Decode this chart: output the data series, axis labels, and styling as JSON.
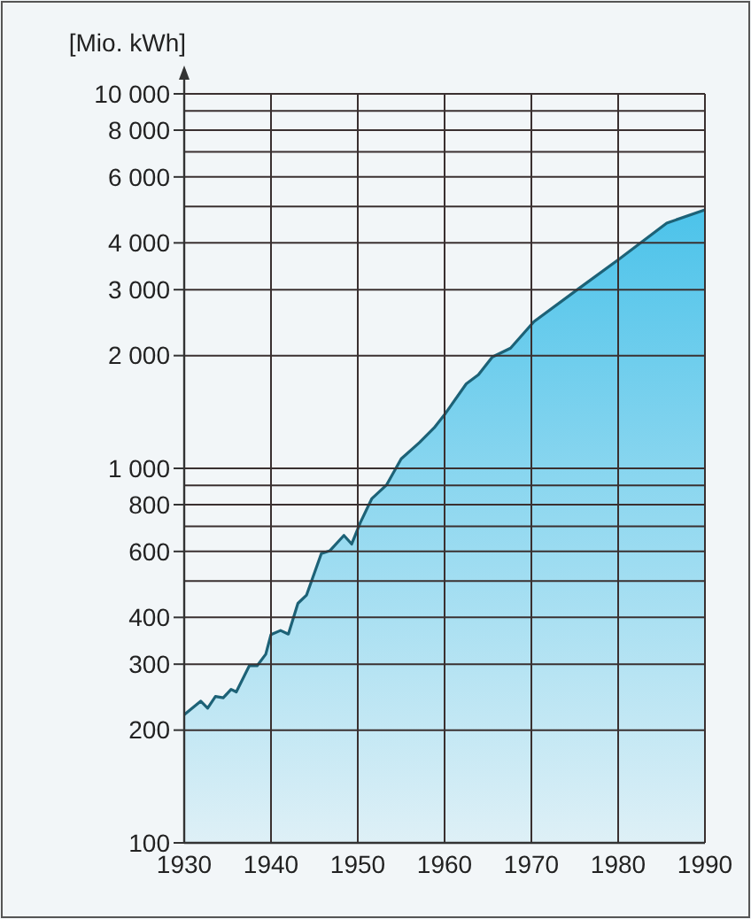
{
  "chart_data": {
    "type": "area",
    "ylabel": "[Mio. kWh]",
    "log": "y",
    "grid": true,
    "xlim": [
      1930,
      1990
    ],
    "xticks": [
      1930,
      1940,
      1950,
      1960,
      1970,
      1980,
      1990
    ],
    "ylim": [
      100,
      10000
    ],
    "yticks": [
      100,
      200,
      300,
      400,
      {
        "value": 500,
        "label": null
      },
      600,
      {
        "value": 700,
        "label": null
      },
      800,
      {
        "value": 900,
        "label": null
      },
      {
        "value": 1000,
        "label": "1 000"
      },
      {
        "value": 2000,
        "label": "2 000"
      },
      {
        "value": 3000,
        "label": "3 000"
      },
      {
        "value": 4000,
        "label": "4 000"
      },
      {
        "value": 5000,
        "label": null
      },
      {
        "value": 6000,
        "label": "6 000"
      },
      {
        "value": 7000,
        "label": null
      },
      {
        "value": 8000,
        "label": "8 000"
      },
      {
        "value": 9000,
        "label": null
      },
      {
        "value": 10000,
        "label": "10 000"
      }
    ],
    "x": [
      1930,
      1931.9,
      1932.7,
      1933.6,
      1934.5,
      1935.4,
      1936,
      1937.5,
      1938.4,
      1939.4,
      1940,
      1941.1,
      1942,
      1943.1,
      1944.1,
      1945.8,
      1946.8,
      1948.4,
      1949.3,
      1950.3,
      1951.6,
      1953.3,
      1955,
      1957.1,
      1958.8,
      1960.1,
      1962.5,
      1963.9,
      1965.5,
      1967.6,
      1970.3,
      1975.4,
      1980.2,
      1985.6,
      1990
    ],
    "series": [
      {
        "color": "#4cc3ea",
        "values": [
          220,
          239,
          229,
          246,
          244,
          257,
          253,
          297,
          297,
          319,
          360,
          369,
          361,
          436,
          459,
          592,
          603,
          662,
          628,
          717,
          829,
          902,
          1060,
          1172,
          1283,
          1402,
          1682,
          1778,
          1983,
          2094,
          2466,
          3013,
          3634,
          4518,
          4900
        ]
      }
    ]
  }
}
